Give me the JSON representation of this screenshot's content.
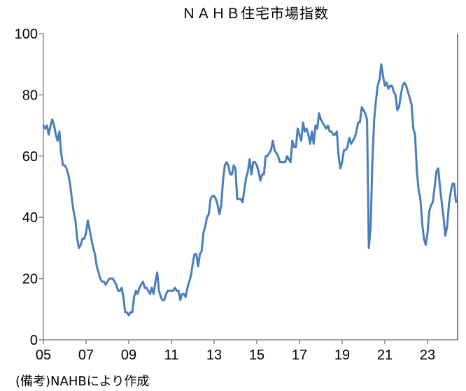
{
  "chart_data": {
    "type": "line",
    "title": "ＮＡＨＢ住宅市場指数",
    "note": "(備考)NAHBにより作成",
    "xlabel": "",
    "ylabel": "",
    "ylim": [
      0,
      100
    ],
    "yticks": [
      0,
      20,
      40,
      60,
      80,
      100
    ],
    "xtick_labels": [
      "05",
      "07",
      "09",
      "11",
      "13",
      "15",
      "17",
      "19",
      "21",
      "23"
    ],
    "x_start": "2005-01",
    "x_frequency": "monthly",
    "grid": false,
    "line_color": "#4a7ebb",
    "series": [
      {
        "values": [
          70,
          69,
          70,
          67,
          70,
          72,
          70,
          67,
          65,
          68,
          61,
          57,
          57,
          56,
          54,
          51,
          46,
          42,
          39,
          33,
          30,
          31,
          33,
          33,
          35,
          39,
          36,
          33,
          30,
          28,
          24,
          22,
          20,
          19,
          19,
          18,
          19,
          20,
          20,
          20,
          19,
          18,
          16,
          16,
          17,
          14,
          9,
          9,
          8,
          9,
          9,
          14,
          16,
          15,
          17,
          18,
          19,
          17,
          17,
          16,
          15,
          17,
          15,
          19,
          22,
          16,
          14,
          13,
          13,
          15,
          16,
          16,
          16,
          16,
          17,
          16,
          16,
          13,
          15,
          15,
          14,
          17,
          19,
          21,
          25,
          28,
          28,
          24,
          28,
          29,
          35,
          37,
          40,
          41,
          46,
          47,
          47,
          46,
          44,
          41,
          44,
          52,
          57,
          58,
          57,
          54,
          54,
          57,
          56,
          46,
          46,
          46,
          45,
          49,
          53,
          55,
          59,
          54,
          58,
          58,
          57,
          55,
          52,
          54,
          54,
          60,
          60,
          61,
          62,
          65,
          62,
          61,
          60,
          58,
          58,
          58,
          58,
          60,
          59,
          58,
          65,
          63,
          63,
          69,
          67,
          65,
          71,
          68,
          69,
          67,
          64,
          68,
          64,
          70,
          69,
          74,
          72,
          71,
          70,
          69,
          70,
          68,
          68,
          67,
          67,
          68,
          60,
          56,
          58,
          62,
          62,
          63,
          66,
          64,
          65,
          66,
          68,
          71,
          71,
          76,
          75,
          74,
          72,
          30,
          37,
          58,
          72,
          78,
          83,
          85,
          90,
          86,
          83,
          84,
          82,
          83,
          83,
          81,
          80,
          75,
          76,
          80,
          83,
          84,
          83,
          81,
          79,
          77,
          69,
          67,
          55,
          49,
          46,
          38,
          33,
          31,
          35,
          42,
          44,
          45,
          50,
          55,
          56,
          50,
          45,
          40,
          34,
          37,
          44,
          48,
          51,
          51,
          45
        ]
      }
    ]
  }
}
